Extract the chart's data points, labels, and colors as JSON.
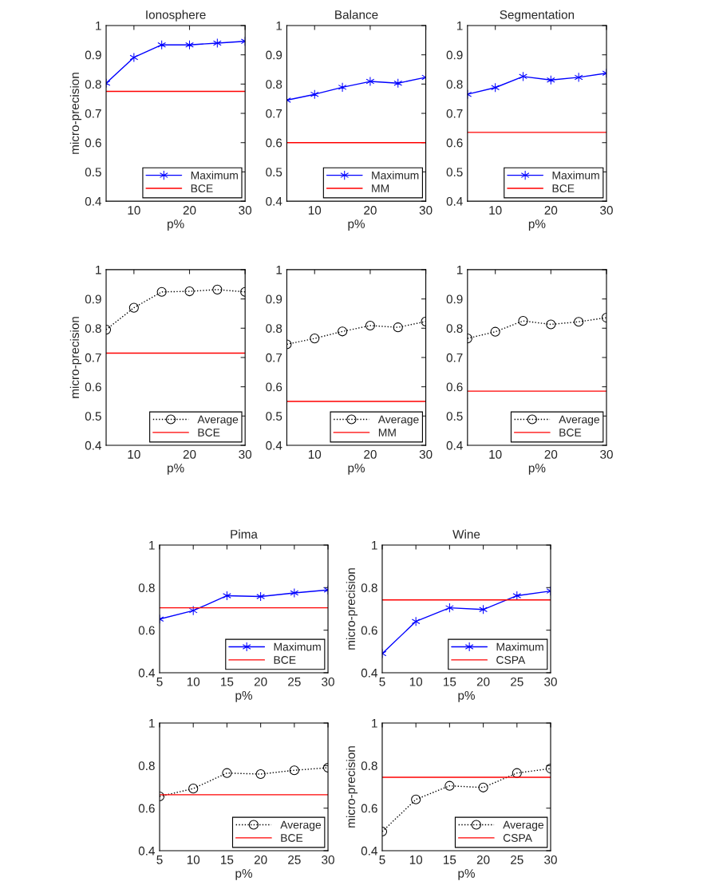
{
  "chart_data": [
    {
      "type": "line",
      "title": "Ionosphere",
      "xlabel": "p%",
      "ylabel": "micro-precision",
      "x": [
        5,
        10,
        15,
        20,
        25,
        30
      ],
      "xlim": [
        5,
        30
      ],
      "xticks": [
        10,
        20,
        30
      ],
      "ylim": [
        0.4,
        1
      ],
      "yticks": [
        0.4,
        0.5,
        0.6,
        0.7,
        0.8,
        0.9,
        1
      ],
      "grid": false,
      "legend": "bottom right",
      "series": [
        {
          "name": "Maximum",
          "color": "#0000ff",
          "marker": "cross",
          "line_style": "solid",
          "values": [
            0.803,
            0.891,
            0.934,
            0.934,
            0.94,
            0.946
          ]
        },
        {
          "name": "BCE",
          "color": "#ff0000",
          "marker": "none",
          "line_style": "solid",
          "values": [
            0.775,
            0.775,
            0.775,
            0.775,
            0.775,
            0.775
          ]
        }
      ]
    },
    {
      "type": "line",
      "title": "Balance",
      "xlabel": "p%",
      "x": [
        5,
        10,
        15,
        20,
        25,
        30
      ],
      "xlim": [
        5,
        30
      ],
      "xticks": [
        10,
        20,
        30
      ],
      "ylim": [
        0.4,
        1
      ],
      "yticks": [
        0.4,
        0.5,
        0.6,
        0.7,
        0.8,
        0.9,
        1
      ],
      "grid": false,
      "legend": "bottom right",
      "series": [
        {
          "name": "Maximum",
          "color": "#0000ff",
          "marker": "cross",
          "line_style": "solid",
          "values": [
            0.745,
            0.765,
            0.789,
            0.809,
            0.803,
            0.823
          ]
        },
        {
          "name": "MM",
          "color": "#ff0000",
          "marker": "none",
          "line_style": "solid",
          "values": [
            0.6,
            0.6,
            0.6,
            0.6,
            0.6,
            0.6
          ]
        }
      ]
    },
    {
      "type": "line",
      "title": "Segmentation",
      "xlabel": "p%",
      "x": [
        5,
        10,
        15,
        20,
        25,
        30
      ],
      "xlim": [
        5,
        30
      ],
      "xticks": [
        10,
        20,
        30
      ],
      "ylim": [
        0.4,
        1
      ],
      "yticks": [
        0.4,
        0.5,
        0.6,
        0.7,
        0.8,
        0.9,
        1
      ],
      "grid": false,
      "legend": "bottom right",
      "series": [
        {
          "name": "Maximum",
          "color": "#0000ff",
          "marker": "cross",
          "line_style": "solid",
          "values": [
            0.765,
            0.788,
            0.826,
            0.814,
            0.823,
            0.837
          ]
        },
        {
          "name": "BCE",
          "color": "#ff0000",
          "marker": "none",
          "line_style": "solid",
          "values": [
            0.635,
            0.635,
            0.635,
            0.635,
            0.635,
            0.635
          ]
        }
      ]
    },
    {
      "type": "line",
      "xlabel": "p%",
      "ylabel": "micro-precision",
      "x": [
        5,
        10,
        15,
        20,
        25,
        30
      ],
      "xlim": [
        5,
        30
      ],
      "xticks": [
        10,
        20,
        30
      ],
      "ylim": [
        0.4,
        1
      ],
      "yticks": [
        0.4,
        0.5,
        0.6,
        0.7,
        0.8,
        0.9,
        1
      ],
      "grid": false,
      "legend": "bottom right",
      "series": [
        {
          "name": "Average",
          "color": "#000000",
          "marker": "circle",
          "line_style": "dotted",
          "values": [
            0.795,
            0.87,
            0.924,
            0.926,
            0.932,
            0.924
          ]
        },
        {
          "name": "BCE",
          "color": "#ff0000",
          "marker": "none",
          "line_style": "solid",
          "values": [
            0.715,
            0.715,
            0.715,
            0.715,
            0.715,
            0.715
          ]
        }
      ]
    },
    {
      "type": "line",
      "xlabel": "p%",
      "x": [
        5,
        10,
        15,
        20,
        25,
        30
      ],
      "xlim": [
        5,
        30
      ],
      "xticks": [
        10,
        20,
        30
      ],
      "ylim": [
        0.4,
        1
      ],
      "yticks": [
        0.4,
        0.5,
        0.6,
        0.7,
        0.8,
        0.9,
        1
      ],
      "grid": false,
      "legend": "bottom right",
      "series": [
        {
          "name": "Average",
          "color": "#000000",
          "marker": "circle",
          "line_style": "dotted",
          "values": [
            0.745,
            0.765,
            0.789,
            0.809,
            0.803,
            0.823
          ]
        },
        {
          "name": "MM",
          "color": "#ff0000",
          "marker": "none",
          "line_style": "solid",
          "values": [
            0.55,
            0.55,
            0.55,
            0.55,
            0.55,
            0.55
          ]
        }
      ]
    },
    {
      "type": "line",
      "xlabel": "p%",
      "x": [
        5,
        10,
        15,
        20,
        25,
        30
      ],
      "xlim": [
        5,
        30
      ],
      "xticks": [
        10,
        20,
        30
      ],
      "ylim": [
        0.4,
        1
      ],
      "yticks": [
        0.4,
        0.5,
        0.6,
        0.7,
        0.8,
        0.9,
        1
      ],
      "grid": false,
      "legend": "bottom right",
      "series": [
        {
          "name": "Average",
          "color": "#000000",
          "marker": "circle",
          "line_style": "dotted",
          "values": [
            0.765,
            0.788,
            0.825,
            0.813,
            0.822,
            0.836
          ]
        },
        {
          "name": "BCE",
          "color": "#ff0000",
          "marker": "none",
          "line_style": "solid",
          "values": [
            0.585,
            0.585,
            0.585,
            0.585,
            0.585,
            0.585
          ]
        }
      ]
    },
    {
      "type": "line",
      "title": "Pima",
      "xlabel": "p%",
      "x": [
        5,
        10,
        15,
        20,
        25,
        30
      ],
      "xlim": [
        5,
        30
      ],
      "xticks": [
        5,
        10,
        15,
        20,
        25,
        30
      ],
      "ylim": [
        0.4,
        1
      ],
      "yticks": [
        0.4,
        0.6,
        0.8,
        1
      ],
      "grid": false,
      "legend": "bottom right",
      "series": [
        {
          "name": "Maximum",
          "color": "#0000ff",
          "marker": "cross",
          "line_style": "solid",
          "values": [
            0.652,
            0.692,
            0.762,
            0.758,
            0.775,
            0.789
          ]
        },
        {
          "name": "BCE",
          "color": "#ff0000",
          "marker": "none",
          "line_style": "solid",
          "values": [
            0.705,
            0.705,
            0.705,
            0.705,
            0.705,
            0.705
          ]
        }
      ]
    },
    {
      "type": "line",
      "title": "Wine",
      "xlabel": "p%",
      "ylabel": "micro-precision",
      "x": [
        5,
        10,
        15,
        20,
        25,
        30
      ],
      "xlim": [
        5,
        30
      ],
      "xticks": [
        5,
        10,
        15,
        20,
        25,
        30
      ],
      "ylim": [
        0.4,
        1
      ],
      "yticks": [
        0.4,
        0.6,
        0.8,
        1
      ],
      "grid": false,
      "legend": "bottom right",
      "series": [
        {
          "name": "Maximum",
          "color": "#0000ff",
          "marker": "cross",
          "line_style": "solid",
          "values": [
            0.49,
            0.641,
            0.705,
            0.697,
            0.762,
            0.784
          ]
        },
        {
          "name": "CSPA",
          "color": "#ff0000",
          "marker": "none",
          "line_style": "solid",
          "values": [
            0.742,
            0.742,
            0.742,
            0.742,
            0.742,
            0.742
          ]
        }
      ]
    },
    {
      "type": "line",
      "xlabel": "p%",
      "x": [
        5,
        10,
        15,
        20,
        25,
        30
      ],
      "xlim": [
        5,
        30
      ],
      "xticks": [
        5,
        10,
        15,
        20,
        25,
        30
      ],
      "ylim": [
        0.4,
        1
      ],
      "yticks": [
        0.4,
        0.6,
        0.8,
        1
      ],
      "grid": false,
      "legend": "bottom right",
      "series": [
        {
          "name": "Average",
          "color": "#000000",
          "marker": "circle",
          "line_style": "dotted",
          "values": [
            0.655,
            0.692,
            0.765,
            0.76,
            0.778,
            0.79
          ]
        },
        {
          "name": "BCE",
          "color": "#ff0000",
          "marker": "none",
          "line_style": "solid",
          "values": [
            0.663,
            0.663,
            0.663,
            0.663,
            0.663,
            0.663
          ]
        }
      ]
    },
    {
      "type": "line",
      "xlabel": "p%",
      "ylabel": "micro-precision",
      "x": [
        5,
        10,
        15,
        20,
        25,
        30
      ],
      "xlim": [
        5,
        30
      ],
      "xticks": [
        5,
        10,
        15,
        20,
        25,
        30
      ],
      "ylim": [
        0.4,
        1
      ],
      "yticks": [
        0.4,
        0.6,
        0.8,
        1
      ],
      "grid": false,
      "legend": "bottom right",
      "series": [
        {
          "name": "Average",
          "color": "#000000",
          "marker": "circle",
          "line_style": "dotted",
          "values": [
            0.49,
            0.641,
            0.705,
            0.697,
            0.765,
            0.786
          ]
        },
        {
          "name": "CSPA",
          "color": "#ff0000",
          "marker": "none",
          "line_style": "solid",
          "values": [
            0.745,
            0.745,
            0.745,
            0.745,
            0.745,
            0.745
          ]
        }
      ]
    }
  ]
}
